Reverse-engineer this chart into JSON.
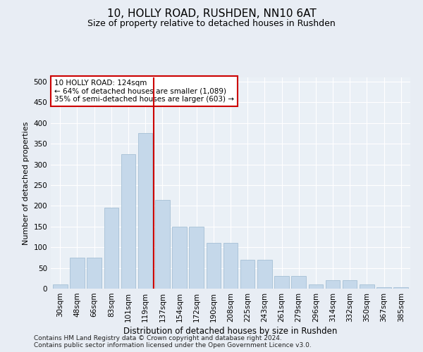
{
  "title": "10, HOLLY ROAD, RUSHDEN, NN10 6AT",
  "subtitle": "Size of property relative to detached houses in Rushden",
  "xlabel": "Distribution of detached houses by size in Rushden",
  "ylabel": "Number of detached properties",
  "categories": [
    "30sqm",
    "48sqm",
    "66sqm",
    "83sqm",
    "101sqm",
    "119sqm",
    "137sqm",
    "154sqm",
    "172sqm",
    "190sqm",
    "208sqm",
    "225sqm",
    "243sqm",
    "261sqm",
    "279sqm",
    "296sqm",
    "314sqm",
    "332sqm",
    "350sqm",
    "367sqm",
    "385sqm"
  ],
  "values": [
    10,
    75,
    75,
    195,
    325,
    375,
    215,
    150,
    150,
    110,
    110,
    70,
    70,
    30,
    30,
    10,
    20,
    20,
    10,
    3,
    3
  ],
  "bar_color": "#c5d8ea",
  "bar_edge_color": "#9cb8d0",
  "vline_x": 5.5,
  "vline_color": "#cc0000",
  "annotation_text": "10 HOLLY ROAD: 124sqm\n← 64% of detached houses are smaller (1,089)\n35% of semi-detached houses are larger (603) →",
  "annotation_box_facecolor": "#ffffff",
  "annotation_box_edgecolor": "#cc0000",
  "ylim": [
    0,
    510
  ],
  "yticks": [
    0,
    50,
    100,
    150,
    200,
    250,
    300,
    350,
    400,
    450,
    500
  ],
  "footer_line1": "Contains HM Land Registry data © Crown copyright and database right 2024.",
  "footer_line2": "Contains public sector information licensed under the Open Government Licence v3.0.",
  "bg_color": "#e8edf4",
  "plot_bg_color": "#eaf0f6",
  "grid_color": "#ffffff",
  "title_fontsize": 11,
  "subtitle_fontsize": 9,
  "xlabel_fontsize": 8.5,
  "ylabel_fontsize": 8,
  "tick_fontsize": 7.5,
  "annotation_fontsize": 7.5,
  "footer_fontsize": 6.5
}
